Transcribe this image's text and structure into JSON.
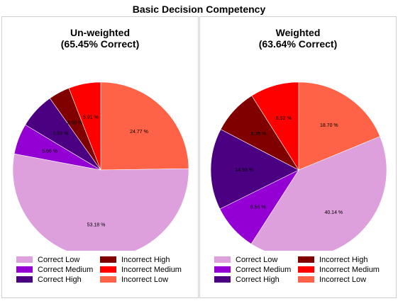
{
  "title": "Basic Decision Competency",
  "colors": {
    "Correct Low": "#dda0dd",
    "Correct Medium": "#9400d3",
    "Correct High": "#4b0082",
    "Incorrect High": "#800000",
    "Incorrect Medium": "#ff0000",
    "Incorrect Low": "#ff6347"
  },
  "chart_data": [
    {
      "type": "pie",
      "title": "Un-weighted",
      "subtitle": "(65.45% Correct)",
      "slices": [
        {
          "name": "Incorrect Low",
          "value": 24.77,
          "label": "24.77 %"
        },
        {
          "name": "Correct Low",
          "value": 53.18,
          "label": "53.18 %"
        },
        {
          "name": "Correct Medium",
          "value": 5.66,
          "label": "5.66 %"
        },
        {
          "name": "Correct High",
          "value": 6.59,
          "label": "6.59 %"
        },
        {
          "name": "Incorrect High",
          "value": 3.9,
          "label": "3.90 %"
        },
        {
          "name": "Incorrect Medium",
          "value": 5.91,
          "label": "5.91 %"
        }
      ],
      "legend": [
        "Correct Low",
        "Correct Medium",
        "Correct High",
        "Incorrect High",
        "Incorrect Medium",
        "Incorrect Low"
      ]
    },
    {
      "type": "pie",
      "title": "Weighted",
      "subtitle": "(63.64% Correct)",
      "slices": [
        {
          "name": "Incorrect Low",
          "value": 18.7,
          "label": "18.70 %"
        },
        {
          "name": "Correct Low",
          "value": 40.14,
          "label": "40.14 %"
        },
        {
          "name": "Correct Medium",
          "value": 8.56,
          "label": "8.56 %"
        },
        {
          "name": "Correct High",
          "value": 14.93,
          "label": "14.93 %"
        },
        {
          "name": "Incorrect High",
          "value": 8.35,
          "label": "8.35 %"
        },
        {
          "name": "Incorrect Medium",
          "value": 8.92,
          "label": "8.92 %"
        }
      ],
      "legend": [
        "Correct Low",
        "Correct Medium",
        "Correct High",
        "Incorrect High",
        "Incorrect Medium",
        "Incorrect Low"
      ]
    }
  ]
}
